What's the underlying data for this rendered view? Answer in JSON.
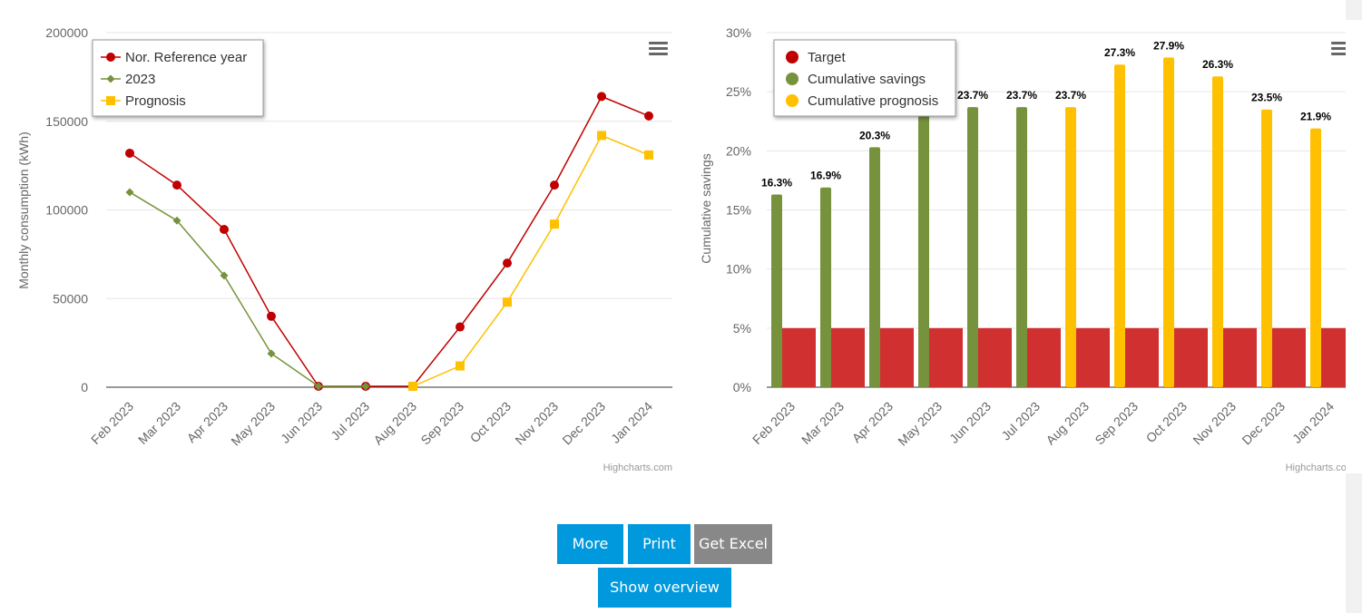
{
  "colors": {
    "reference": "#c00000",
    "actual": "#76923c",
    "prognosis": "#ffc000",
    "target_bar": "#d03030",
    "savings_bar": "#76923c",
    "prognosis_bar": "#ffc000",
    "button_blue": "#0099dd",
    "button_grey": "#888888"
  },
  "icons": {
    "menu": "hamburger-menu-icon"
  },
  "chart_data": [
    {
      "type": "line",
      "categories": [
        "Feb 2023",
        "Mar 2023",
        "Apr 2023",
        "May 2023",
        "Jun 2023",
        "Jul 2023",
        "Aug 2023",
        "Sep 2023",
        "Oct 2023",
        "Nov 2023",
        "Dec 2023",
        "Jan 2024"
      ],
      "ylabel": "Monthly consumption (kWh)",
      "ylim": [
        0,
        200000
      ],
      "yticks": [
        "0",
        "50000",
        "100000",
        "150000",
        "200000"
      ],
      "grid": true,
      "legend_position": "top-left",
      "series": [
        {
          "name": "Nor. Reference year",
          "marker": "circle",
          "values": [
            132000,
            114000,
            89000,
            40000,
            500,
            500,
            500,
            34000,
            70000,
            114000,
            164000,
            153000
          ]
        },
        {
          "name": "2023",
          "marker": "diamond",
          "values": [
            110000,
            94000,
            63000,
            19000,
            500,
            500,
            null,
            null,
            null,
            null,
            null,
            null
          ]
        },
        {
          "name": "Prognosis",
          "marker": "square",
          "values": [
            null,
            null,
            null,
            null,
            null,
            null,
            500,
            12000,
            48000,
            92000,
            142000,
            131000
          ]
        }
      ],
      "credits": "Highcharts.com"
    },
    {
      "type": "bar",
      "categories": [
        "Feb 2023",
        "Mar 2023",
        "Apr 2023",
        "May 2023",
        "Jun 2023",
        "Jul 2023",
        "Aug 2023",
        "Sep 2023",
        "Oct 2023",
        "Nov 2023",
        "Dec 2023",
        "Jan 2024"
      ],
      "ylabel": "Cumulative savings",
      "ylim": [
        0,
        30
      ],
      "yticks": [
        "0%",
        "5%",
        "10%",
        "15%",
        "20%",
        "25%",
        "30%"
      ],
      "grid": true,
      "legend_position": "top-left",
      "series": [
        {
          "name": "Target",
          "values": [
            5,
            5,
            5,
            5,
            5,
            5,
            5,
            5,
            5,
            5,
            5,
            5
          ]
        },
        {
          "name": "Cumulative savings",
          "values": [
            16.3,
            16.9,
            20.3,
            23.0,
            23.7,
            23.7,
            null,
            null,
            null,
            null,
            null,
            null
          ]
        },
        {
          "name": "Cumulative prognosis",
          "values": [
            null,
            null,
            null,
            null,
            null,
            null,
            23.7,
            27.3,
            27.9,
            26.3,
            23.5,
            21.9
          ]
        }
      ],
      "data_labels": [
        "16.3%",
        "16.9%",
        "20.3%",
        "",
        "23.7%",
        "23.7%",
        "23.7%",
        "27.3%",
        "27.9%",
        "26.3%",
        "23.5%",
        "21.9%"
      ],
      "credits": "Highcharts.com"
    }
  ],
  "buttons": {
    "more": "More",
    "print": "Print",
    "excel": "Get Excel",
    "overview": "Show overview"
  }
}
